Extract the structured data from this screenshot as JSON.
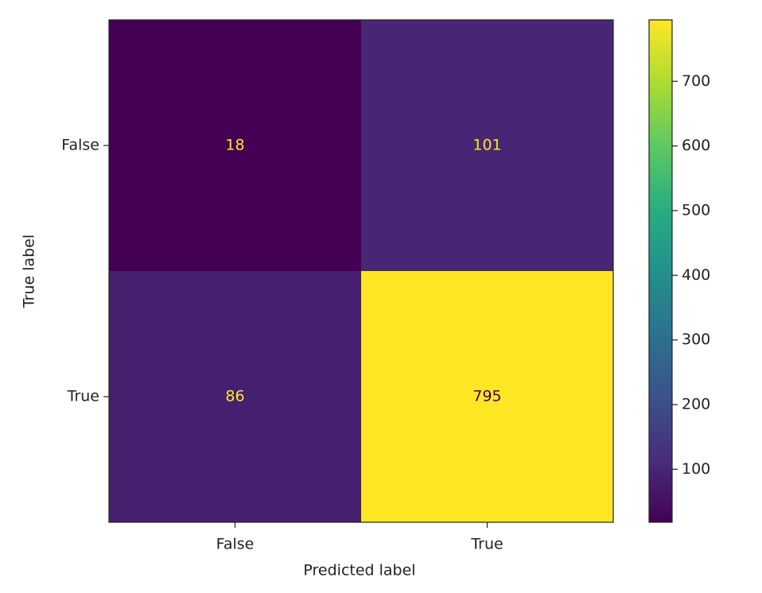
{
  "chart_data": {
    "type": "heatmap",
    "x_label": "Predicted label",
    "y_label": "True label",
    "x_categories": [
      "False",
      "True"
    ],
    "y_categories": [
      "False",
      "True"
    ],
    "z": [
      [
        18,
        101
      ],
      [
        86,
        795
      ]
    ],
    "colormap": "viridis",
    "colorbar_lim": [
      18,
      795
    ],
    "colorbar_ticks": [
      100,
      200,
      300,
      400,
      500,
      600,
      700
    ]
  }
}
